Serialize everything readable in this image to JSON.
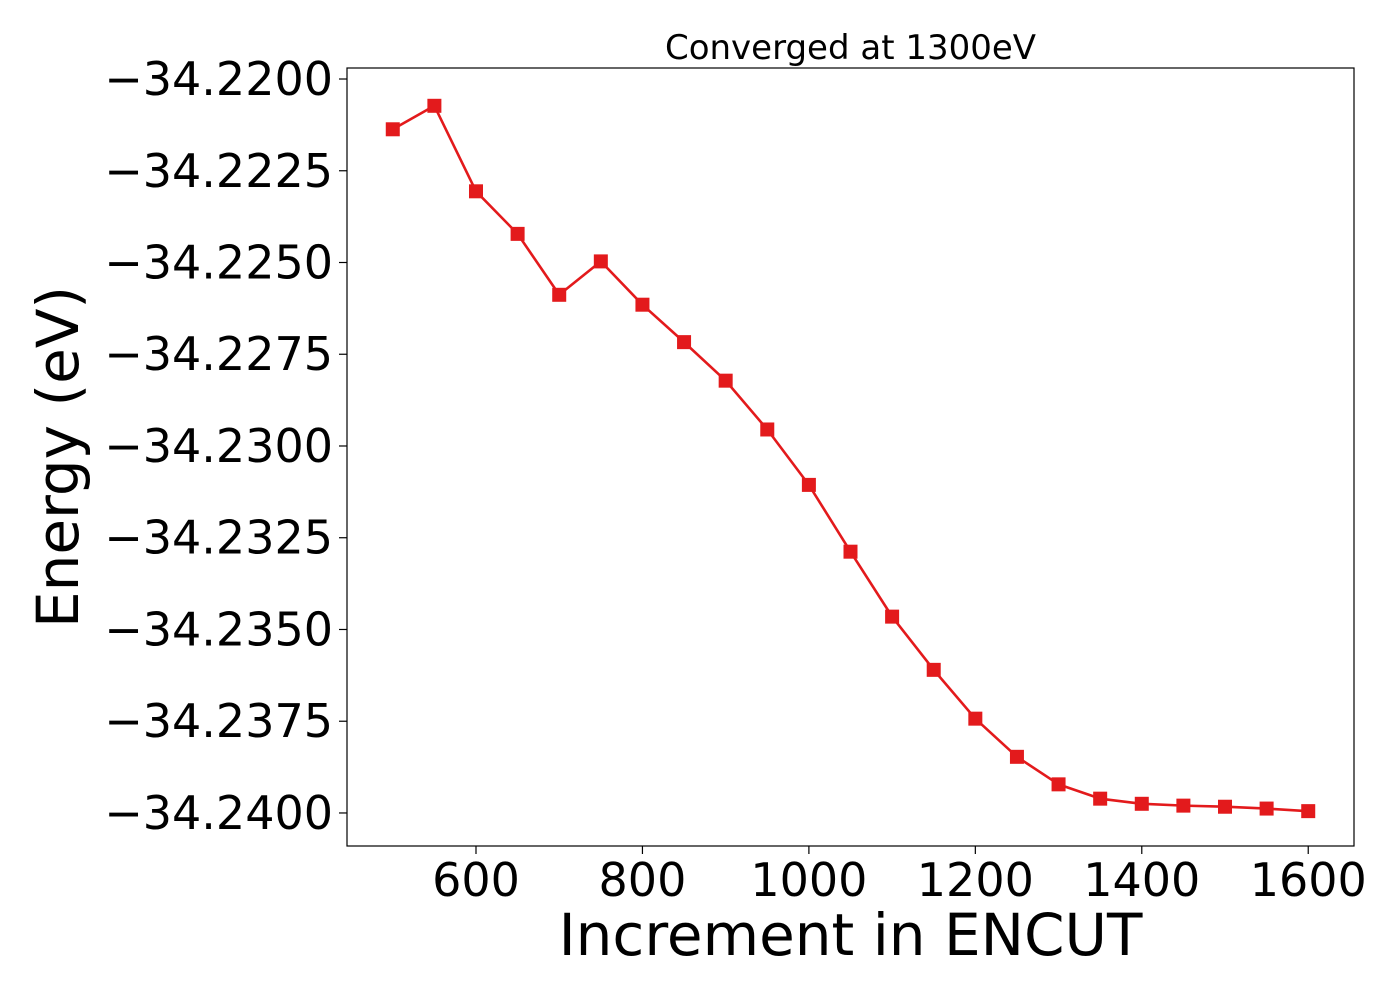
{
  "chart_data": {
    "type": "line",
    "title": "Converged at 1300eV",
    "xlabel": "Increment in ENCUT",
    "ylabel": "Energy (eV)",
    "xlim": [
      445,
      1655
    ],
    "ylim": [
      -34.2409,
      -34.2197
    ],
    "x_ticks": [
      600,
      800,
      1000,
      1200,
      1400,
      1600
    ],
    "x_tick_labels": [
      "600",
      "800",
      "1000",
      "1200",
      "1400",
      "1600"
    ],
    "y_ticks": [
      -34.22,
      -34.2225,
      -34.225,
      -34.2275,
      -34.23,
      -34.2325,
      -34.235,
      -34.2375,
      -34.24
    ],
    "y_tick_labels": [
      "−34.2200",
      "−34.2225",
      "−34.2250",
      "−34.2275",
      "−34.2300",
      "−34.2325",
      "−34.2350",
      "−34.2375",
      "−34.2400"
    ],
    "grid": false,
    "legend": "none",
    "marker": "square",
    "color": "#e31a1c",
    "series": [
      {
        "x": [
          500,
          550,
          600,
          650,
          700,
          750,
          800,
          850,
          900,
          950,
          1000,
          1050,
          1100,
          1150,
          1200,
          1250,
          1300,
          1350,
          1400,
          1450,
          1500,
          1550,
          1600
        ],
        "values": [
          -34.22137,
          -34.22073,
          -34.22306,
          -34.22422,
          -34.22588,
          -34.22497,
          -34.22615,
          -34.22717,
          -34.22822,
          -34.22955,
          -34.23106,
          -34.23288,
          -34.23465,
          -34.2361,
          -34.23743,
          -34.23847,
          -34.23922,
          -34.23961,
          -34.23975,
          -34.2398,
          -34.23983,
          -34.23988,
          -34.23995
        ]
      }
    ]
  }
}
